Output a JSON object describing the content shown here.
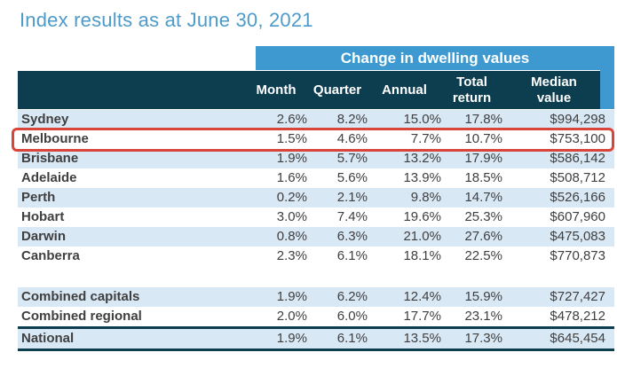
{
  "title": "Index results as at June 30, 2021",
  "table": {
    "span_header": "Change in dwelling values",
    "columns": {
      "name": "",
      "month": "Month",
      "quarter": "Quarter",
      "annual": "Annual",
      "total_return": "Total\nreturn",
      "median_value": "Median\nvalue"
    },
    "rows": [
      {
        "name": "Sydney",
        "month": "2.6%",
        "quarter": "8.2%",
        "annual": "15.0%",
        "total_return": "17.8%",
        "median_value": "$994,298"
      },
      {
        "name": "Melbourne",
        "month": "1.5%",
        "quarter": "4.6%",
        "annual": "7.7%",
        "total_return": "10.7%",
        "median_value": "$753,100"
      },
      {
        "name": "Brisbane",
        "month": "1.9%",
        "quarter": "5.7%",
        "annual": "13.2%",
        "total_return": "17.9%",
        "median_value": "$586,142"
      },
      {
        "name": "Adelaide",
        "month": "1.6%",
        "quarter": "5.6%",
        "annual": "13.9%",
        "total_return": "18.5%",
        "median_value": "$508,712"
      },
      {
        "name": "Perth",
        "month": "0.2%",
        "quarter": "2.1%",
        "annual": "9.8%",
        "total_return": "14.7%",
        "median_value": "$526,166"
      },
      {
        "name": "Hobart",
        "month": "3.0%",
        "quarter": "7.4%",
        "annual": "19.6%",
        "total_return": "25.3%",
        "median_value": "$607,960"
      },
      {
        "name": "Darwin",
        "month": "0.8%",
        "quarter": "6.3%",
        "annual": "21.0%",
        "total_return": "27.6%",
        "median_value": "$475,083"
      },
      {
        "name": "Canberra",
        "month": "2.3%",
        "quarter": "6.1%",
        "annual": "18.1%",
        "total_return": "22.5%",
        "median_value": "$770,873"
      },
      {
        "name": "Combined capitals",
        "month": "1.9%",
        "quarter": "6.2%",
        "annual": "12.4%",
        "total_return": "15.9%",
        "median_value": "$727,427"
      },
      {
        "name": "Combined regional",
        "month": "2.0%",
        "quarter": "6.0%",
        "annual": "17.7%",
        "total_return": "23.1%",
        "median_value": "$478,212"
      },
      {
        "name": "National",
        "month": "1.9%",
        "quarter": "6.1%",
        "annual": "13.5%",
        "total_return": "17.3%",
        "median_value": "$645,454"
      }
    ]
  },
  "highlight": {
    "highlighted_row": "Melbourne",
    "box_color": "#d9453b"
  },
  "colors": {
    "title_text": "#4e9bc9",
    "band_background": "#3e99d1",
    "header_background": "#0d3e50",
    "alt_row_background": "#d9e8f5",
    "body_text": "#3f3f3f"
  }
}
